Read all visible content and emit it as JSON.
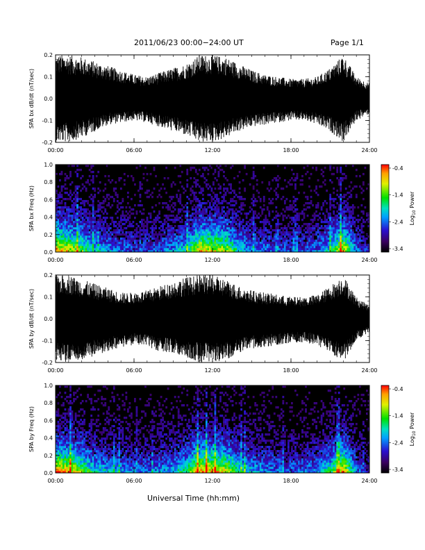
{
  "header": {
    "title": "2011/06/23  00:00−24:00 UT",
    "page": "Page 1/1"
  },
  "footer": {
    "xlabel": "Universal Time (hh:mm)"
  },
  "colorbar": {
    "ticks": [
      "-0.4",
      "-1.4",
      "-2.4",
      "-3.4"
    ],
    "label_main": "Log",
    "label_sub": "10",
    "label_tail": " Power"
  },
  "chart_data": [
    {
      "type": "area",
      "title": "",
      "xlabel": "",
      "ylabel": "SPA bx dB/dt (nT/sec)",
      "x_ticks": [
        "00:00",
        "06:00",
        "12:00",
        "18:00",
        "24:00"
      ],
      "y_ticks": [
        "0.2",
        "0.1",
        "0.0",
        "-0.1",
        "-0.2"
      ],
      "xlim": [
        0,
        24
      ],
      "ylim": [
        -0.2,
        0.2
      ],
      "envelope_hours": [
        0,
        1,
        2,
        3,
        4,
        5,
        6,
        7,
        8,
        9,
        10,
        11,
        12,
        13,
        14,
        15,
        16,
        17,
        18,
        19,
        20,
        21,
        22,
        23,
        24
      ],
      "envelope_upper": [
        0.2,
        0.2,
        0.19,
        0.17,
        0.15,
        0.13,
        0.11,
        0.1,
        0.12,
        0.14,
        0.16,
        0.2,
        0.2,
        0.19,
        0.16,
        0.13,
        0.11,
        0.1,
        0.09,
        0.09,
        0.1,
        0.14,
        0.2,
        0.1,
        0.07
      ],
      "envelope_lower": [
        -0.2,
        -0.2,
        -0.18,
        -0.15,
        -0.12,
        -0.11,
        -0.1,
        -0.11,
        -0.13,
        -0.15,
        -0.17,
        -0.2,
        -0.2,
        -0.18,
        -0.15,
        -0.13,
        -0.12,
        -0.11,
        -0.1,
        -0.1,
        -0.12,
        -0.15,
        -0.2,
        -0.1,
        -0.07
      ]
    },
    {
      "type": "heatmap",
      "title": "",
      "xlabel": "",
      "ylabel": "SPA bx Freq (Hz)",
      "x_ticks": [
        "00:00",
        "06:00",
        "12:00",
        "18:00",
        "24:00"
      ],
      "y_ticks": [
        "1.0",
        "0.8",
        "0.6",
        "0.4",
        "0.2",
        "0.0"
      ],
      "xlim": [
        0,
        24
      ],
      "ylim": [
        0,
        1
      ],
      "color_scale": {
        "label": "Log10 Power",
        "min": -3.4,
        "max": -0.4
      },
      "activity_hours": [
        0,
        1,
        2,
        3,
        4,
        5,
        6,
        7,
        8,
        9,
        10,
        11,
        12,
        13,
        14,
        15,
        16,
        17,
        18,
        19,
        20,
        21,
        22,
        23,
        24
      ],
      "activity_level": [
        0.9,
        0.8,
        0.65,
        0.45,
        0.4,
        0.35,
        0.3,
        0.3,
        0.35,
        0.4,
        0.5,
        0.85,
        0.8,
        0.75,
        0.5,
        0.4,
        0.35,
        0.3,
        0.3,
        0.3,
        0.35,
        0.5,
        0.85,
        0.35,
        0.2
      ]
    },
    {
      "type": "area",
      "title": "",
      "xlabel": "",
      "ylabel": "SPA by dB/dt (nT/sec)",
      "x_ticks": [
        "00:00",
        "06:00",
        "12:00",
        "18:00",
        "24:00"
      ],
      "y_ticks": [
        "0.2",
        "0.1",
        "0.0",
        "-0.1",
        "-0.2"
      ],
      "xlim": [
        0,
        24
      ],
      "ylim": [
        -0.2,
        0.2
      ],
      "envelope_hours": [
        0,
        1,
        2,
        3,
        4,
        5,
        6,
        7,
        8,
        9,
        10,
        11,
        12,
        13,
        14,
        15,
        16,
        17,
        18,
        19,
        20,
        21,
        22,
        23,
        24
      ],
      "envelope_upper": [
        0.2,
        0.2,
        0.18,
        0.16,
        0.14,
        0.12,
        0.12,
        0.13,
        0.15,
        0.17,
        0.19,
        0.2,
        0.2,
        0.18,
        0.15,
        0.13,
        0.12,
        0.11,
        0.1,
        0.1,
        0.11,
        0.15,
        0.2,
        0.1,
        0.06
      ],
      "envelope_lower": [
        -0.2,
        -0.2,
        -0.19,
        -0.17,
        -0.15,
        -0.13,
        -0.12,
        -0.13,
        -0.15,
        -0.16,
        -0.18,
        -0.2,
        -0.2,
        -0.19,
        -0.16,
        -0.14,
        -0.13,
        -0.12,
        -0.11,
        -0.11,
        -0.12,
        -0.16,
        -0.2,
        -0.1,
        -0.06
      ]
    },
    {
      "type": "heatmap",
      "title": "",
      "xlabel": "",
      "ylabel": "SPA by Freq (Hz)",
      "x_ticks": [
        "00:00",
        "06:00",
        "12:00",
        "18:00",
        "24:00"
      ],
      "y_ticks": [
        "1.0",
        "0.8",
        "0.6",
        "0.4",
        "0.2",
        "0.0"
      ],
      "xlim": [
        0,
        24
      ],
      "ylim": [
        0,
        1
      ],
      "color_scale": {
        "label": "Log10 Power",
        "min": -3.4,
        "max": -0.4
      },
      "activity_hours": [
        0,
        1,
        2,
        3,
        4,
        5,
        6,
        7,
        8,
        9,
        10,
        11,
        12,
        13,
        14,
        15,
        16,
        17,
        18,
        19,
        20,
        21,
        22,
        23,
        24
      ],
      "activity_level": [
        0.95,
        0.85,
        0.7,
        0.5,
        0.45,
        0.4,
        0.35,
        0.35,
        0.4,
        0.45,
        0.6,
        0.9,
        0.85,
        0.8,
        0.55,
        0.45,
        0.4,
        0.35,
        0.35,
        0.35,
        0.4,
        0.55,
        0.9,
        0.35,
        0.2
      ]
    }
  ]
}
